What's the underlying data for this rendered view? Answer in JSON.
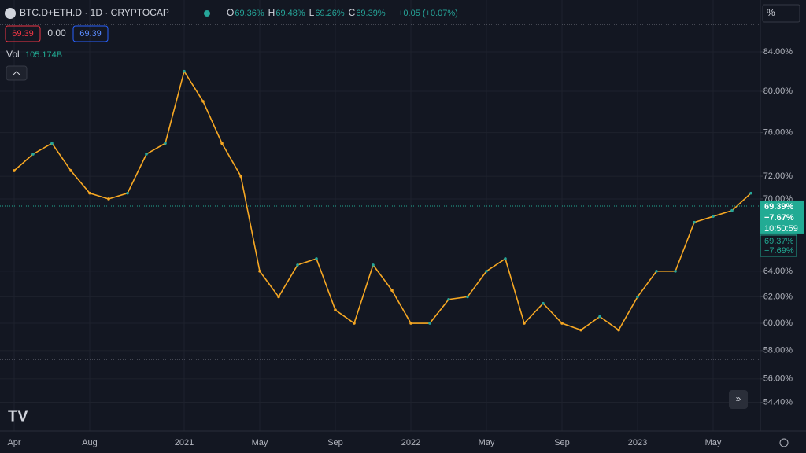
{
  "header": {
    "symbol": "BTC.D+ETH.D · 1D · CRYPTOCAP",
    "ohlc": [
      {
        "key": "O",
        "value": "69.36%"
      },
      {
        "key": "H",
        "value": "69.48%"
      },
      {
        "key": "L",
        "value": "69.26%"
      },
      {
        "key": "C",
        "value": "69.39%"
      }
    ],
    "change": "+0.05 (+0.07%)",
    "sell": "69.39",
    "spread": "0.00",
    "buy": "69.39",
    "vol_label": "Vol",
    "vol_value": "105.174B",
    "scale_mode": "%"
  },
  "price_tags": {
    "last": "69.39%",
    "last_change": "−7.67%",
    "countdown": "10:50:59",
    "pre": "69.37%",
    "pre_change": "−7.69%"
  },
  "chart_data": {
    "type": "line",
    "log_scale": true,
    "grid": true,
    "categories": [
      "Apr",
      null,
      null,
      null,
      "Aug",
      null,
      null,
      null,
      null,
      "2021",
      null,
      null,
      null,
      "May",
      null,
      null,
      null,
      "Sep",
      null,
      null,
      null,
      "2022",
      null,
      null,
      null,
      "May",
      null,
      null,
      null,
      "Sep",
      null,
      null,
      null,
      "2023",
      null,
      null,
      null,
      "May",
      null,
      null
    ],
    "series": [
      {
        "name": "BTC.D+ETH.D",
        "color": "#f7a823",
        "values": [
          72.5,
          74,
          75,
          72.5,
          70.5,
          70,
          70.5,
          74,
          75,
          82,
          79,
          75,
          72,
          64,
          62,
          64.5,
          65,
          61,
          60,
          64.5,
          62.5,
          60,
          60,
          61.8,
          62,
          64,
          65,
          60,
          61.5,
          60,
          59.5,
          60.5,
          59.5,
          62,
          64,
          64,
          68,
          68.5,
          69,
          70.5
        ]
      }
    ],
    "last_value": 69.39,
    "ylim": [
      52.5,
      87.0
    ],
    "yticks": [
      {
        "value": 54.4,
        "label": "54.40%"
      },
      {
        "value": 56,
        "label": "56.00%"
      },
      {
        "value": 58,
        "label": "58.00%"
      },
      {
        "value": 60,
        "label": "60.00%"
      },
      {
        "value": 62,
        "label": "62.00%"
      },
      {
        "value": 64,
        "label": "64.00%"
      },
      {
        "value": 70,
        "label": "70.00%"
      },
      {
        "value": 72,
        "label": "72.00%"
      },
      {
        "value": 76,
        "label": "76.00%"
      },
      {
        "value": 80,
        "label": "80.00%"
      },
      {
        "value": 84,
        "label": "84.00%"
      }
    ]
  }
}
